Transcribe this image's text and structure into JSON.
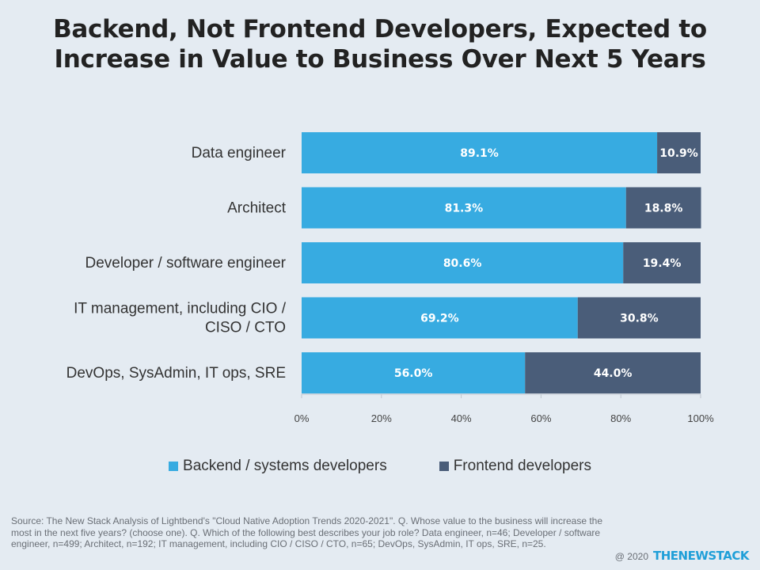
{
  "title": {
    "line1": "Backend, Not Frontend Developers, Expected to",
    "line2": "Increase in Value to Business Over Next 5 Years"
  },
  "colors": {
    "backend": "#37abe1",
    "frontend": "#4a5d79",
    "background": "#e4ebf2"
  },
  "chart_data": {
    "type": "bar",
    "orientation": "horizontal",
    "stacked": true,
    "categories": [
      "Data engineer",
      "Architect",
      "Developer / software engineer",
      "IT management, including CIO / CISO / CTO",
      "DevOps, SysAdmin, IT ops, SRE"
    ],
    "series": [
      {
        "name": "Backend / systems developers",
        "values": [
          89.1,
          81.3,
          80.6,
          69.2,
          56.0
        ],
        "labels": [
          "89.1%",
          "81.3%",
          "80.6%",
          "69.2%",
          "56.0%"
        ]
      },
      {
        "name": "Frontend developers",
        "values": [
          10.9,
          18.8,
          19.4,
          30.8,
          44.0
        ],
        "labels": [
          "10.9%",
          "18.8%",
          "19.4%",
          "30.8%",
          "44.0%"
        ]
      }
    ],
    "xlim": [
      0,
      100
    ],
    "xticks": [
      "0%",
      "20%",
      "40%",
      "60%",
      "80%",
      "100%"
    ],
    "legend_position": "bottom",
    "grid": false
  },
  "source": "Source: The New Stack Analysis of Lightbend's \"Cloud Native Adoption Trends 2020-2021\". Q. Whose value to the business will increase the most in the next five years? (choose one). Q. Which of the following best describes your job role? Data engineer, n=46; Developer / software engineer, n=499; Architect, n=192; IT management, including CIO / CISO / CTO, n=65; DevOps, SysAdmin, IT ops, SRE, n=25.",
  "footer": {
    "copyright": "@ 2020",
    "brand": "THENEWSTACK"
  }
}
